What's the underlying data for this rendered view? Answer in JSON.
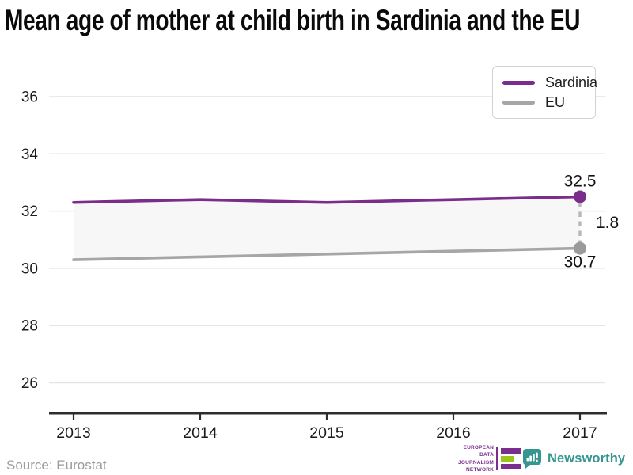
{
  "title": "Mean age of mother at child birth in Sardinia and the EU",
  "source": "Source: Eurostat",
  "legend": {
    "items": [
      {
        "label": "Sardinia",
        "color": "#7b2d8b"
      },
      {
        "label": "EU",
        "color": "#a6a6a6"
      }
    ]
  },
  "chart_data": {
    "type": "line",
    "title": "Mean age of mother at child birth in Sardinia and the EU",
    "x": [
      2013,
      2014,
      2015,
      2016,
      2017
    ],
    "series": [
      {
        "name": "Sardinia",
        "color": "#7b2d8b",
        "dot_color": "#7b2d8b",
        "values": [
          32.3,
          32.4,
          32.3,
          32.4,
          32.5
        ]
      },
      {
        "name": "EU",
        "color": "#a6a6a6",
        "dot_color": "#9a9a9a",
        "values": [
          30.3,
          30.4,
          30.5,
          30.6,
          30.7
        ]
      }
    ],
    "yticks": [
      26,
      28,
      30,
      32,
      34,
      36
    ],
    "ylim": [
      25,
      37
    ],
    "grid": true,
    "legend_position": "top-right",
    "band_fill": "#f7f7f7",
    "end_labels": {
      "sardinia": "32.5",
      "eu": "30.7",
      "gap": "1.8"
    }
  },
  "footer": {
    "edjn": {
      "lines": [
        "EUROPEAN",
        "DATA JOURNALISM",
        "NETWORK"
      ],
      "purple": "#7a2e8e",
      "green": "#9dc41a"
    },
    "newsworthy": {
      "label": "Newsworthy",
      "color": "#35968f"
    }
  }
}
